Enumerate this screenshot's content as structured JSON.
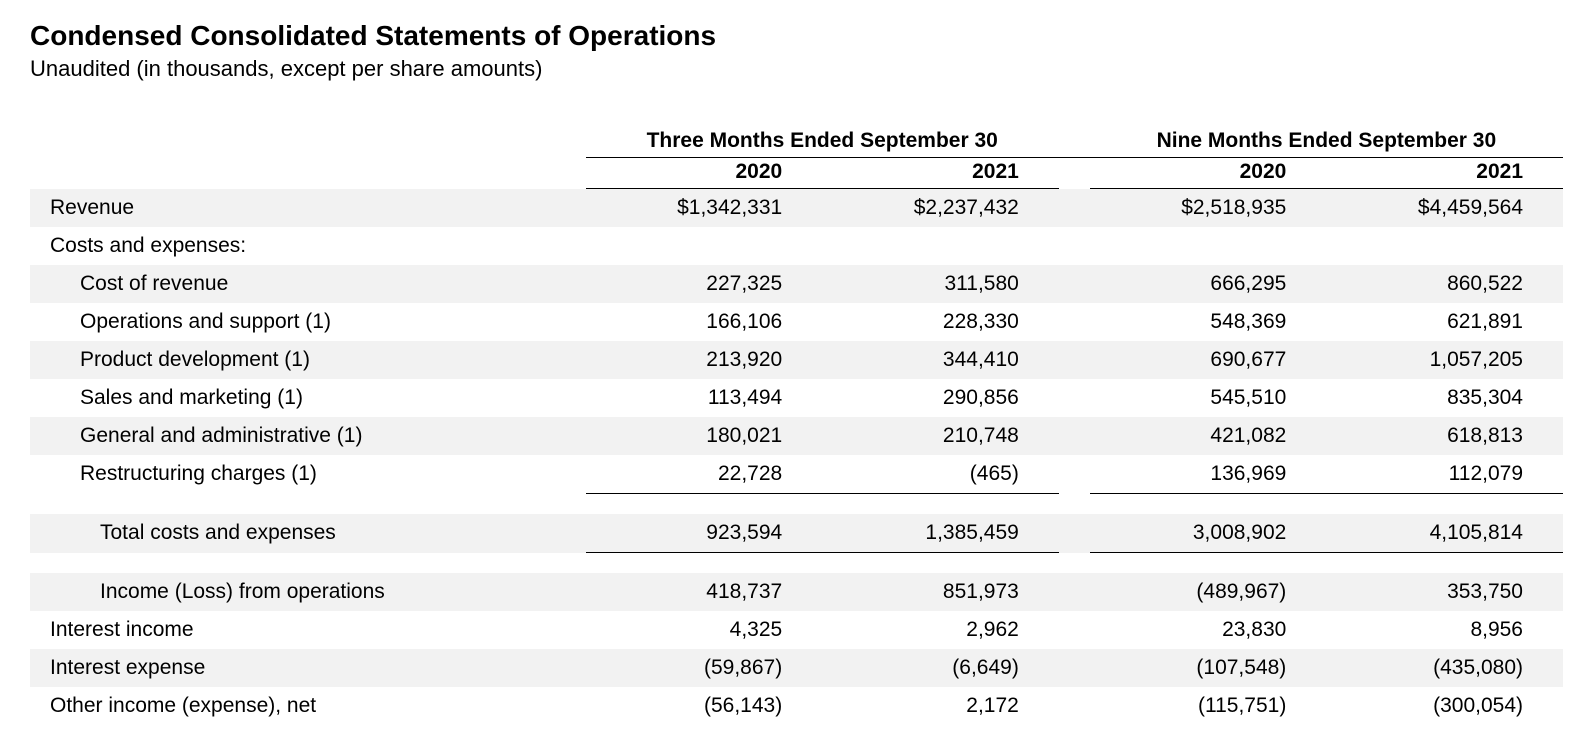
{
  "header": {
    "title": "Condensed Consolidated Statements of Operations",
    "subtitle": "Unaudited (in thousands, except per share amounts)"
  },
  "table": {
    "period_headers": [
      "Three Months Ended September 30",
      "Nine Months Ended September 30"
    ],
    "year_headers": [
      "2020",
      "2021",
      "2020",
      "2021"
    ],
    "rows": [
      {
        "label": "Revenue",
        "values": [
          "$1,342,331",
          "$2,237,432",
          "$2,518,935",
          "$4,459,564"
        ],
        "striped": true,
        "indent": 0
      },
      {
        "label": "Costs and expenses:",
        "values": [
          "",
          "",
          "",
          ""
        ],
        "striped": false,
        "indent": 0
      },
      {
        "label": "Cost of revenue",
        "values": [
          "227,325",
          "311,580",
          "666,295",
          "860,522"
        ],
        "striped": true,
        "indent": 1
      },
      {
        "label": "Operations and support (1)",
        "values": [
          "166,106",
          "228,330",
          "548,369",
          "621,891"
        ],
        "striped": false,
        "indent": 1
      },
      {
        "label": "Product development (1)",
        "values": [
          "213,920",
          "344,410",
          "690,677",
          "1,057,205"
        ],
        "striped": true,
        "indent": 1
      },
      {
        "label": "Sales and marketing (1)",
        "values": [
          "113,494",
          "290,856",
          "545,510",
          "835,304"
        ],
        "striped": false,
        "indent": 1
      },
      {
        "label": "General and administrative (1)",
        "values": [
          "180,021",
          "210,748",
          "421,082",
          "618,813"
        ],
        "striped": true,
        "indent": 1
      },
      {
        "label": "Restructuring charges (1)",
        "values": [
          "22,728",
          "(465)",
          "136,969",
          "112,079"
        ],
        "striped": false,
        "indent": 1,
        "bottom_border": true
      },
      {
        "spacer": true
      },
      {
        "label": "Total costs and expenses",
        "values": [
          "923,594",
          "1,385,459",
          "3,008,902",
          "4,105,814"
        ],
        "striped": true,
        "indent": 2,
        "bottom_border": true
      },
      {
        "spacer": true
      },
      {
        "label": "Income (Loss) from operations",
        "values": [
          "418,737",
          "851,973",
          "(489,967)",
          "353,750"
        ],
        "striped": true,
        "indent": 2
      },
      {
        "label": "Interest income",
        "values": [
          "4,325",
          "2,962",
          "23,830",
          "8,956"
        ],
        "striped": false,
        "indent": 0
      },
      {
        "label": "Interest expense",
        "values": [
          "(59,867)",
          "(6,649)",
          "(107,548)",
          "(435,080)"
        ],
        "striped": true,
        "indent": 0
      },
      {
        "label": "Other income (expense), net",
        "values": [
          "(56,143)",
          "2,172",
          "(115,751)",
          "(300,054)"
        ],
        "striped": false,
        "indent": 0
      }
    ]
  },
  "styling": {
    "background_color": "#ffffff",
    "text_color": "#000000",
    "stripe_color": "#f2f2f2",
    "border_color": "#000000",
    "title_fontsize": 28,
    "subtitle_fontsize": 22,
    "table_fontsize": 21,
    "font_family": "Arial"
  }
}
